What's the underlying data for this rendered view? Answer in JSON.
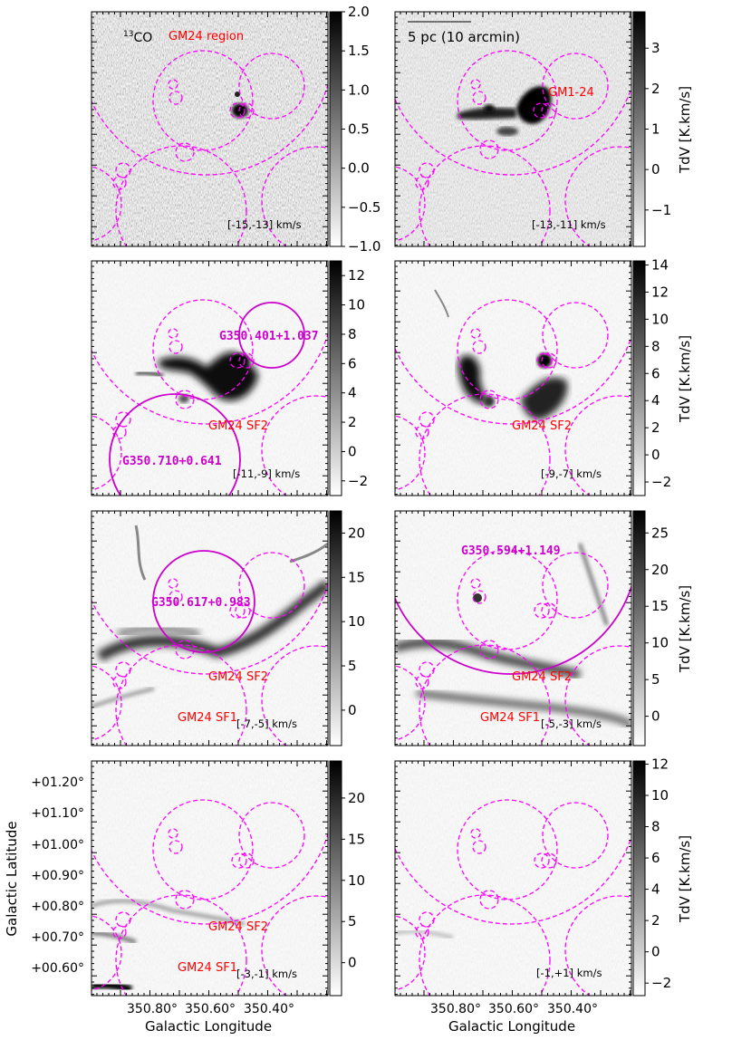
{
  "figure": {
    "x_axis_label": "Galactic Longitude",
    "y_axis_label": "Galactic Latitude",
    "x_tick_labels": [
      "350.80°",
      "350.60°",
      "350.40°"
    ],
    "y_tick_labels": [
      "+01.20°",
      "+01.10°",
      "+01.00°",
      "+00.90°",
      "+00.80°",
      "+00.70°",
      "+00.60°"
    ],
    "colorbar_label": "TdV [K.km/s]",
    "colors": {
      "circle": "#ff00ff",
      "highlight": "#cc00cc",
      "label_red": "#ff0000"
    }
  },
  "chart_data": [
    {
      "type": "heatmap",
      "panel": "row1-left",
      "velocity_range": "[-15,-13] km/s",
      "molecule": "13CO",
      "molecule_sup": "13",
      "molecule_base": "CO",
      "region_label": "GM24 region",
      "colorbar_ticks": [
        "2.0",
        "1.5",
        "1.0",
        "0.5",
        "0.0",
        "−0.5",
        "−1.0"
      ],
      "colorbar_range": [
        -1.0,
        2.0
      ]
    },
    {
      "type": "heatmap",
      "panel": "row1-right",
      "velocity_range": "[-13,-11] km/s",
      "scale_label": "5 pc (10 arcmin)",
      "clump_label": "GM1-24",
      "colorbar_ticks": [
        "3",
        "2",
        "1",
        "0",
        "−1"
      ],
      "colorbar_range": [
        -1.9,
        3.9
      ]
    },
    {
      "type": "heatmap",
      "panel": "row2-left",
      "velocity_range": "[-11,-9] km/s",
      "sources": [
        "G350.401+1.037",
        "G350.710+0.641"
      ],
      "sf_labels": [
        "GM24 SF2"
      ],
      "colorbar_ticks": [
        "12",
        "10",
        "8",
        "6",
        "4",
        "2",
        "0",
        "−2"
      ],
      "colorbar_range": [
        -3.0,
        13.0
      ]
    },
    {
      "type": "heatmap",
      "panel": "row2-right",
      "velocity_range": "[-9,-7] km/s",
      "sf_labels": [
        "GM24 SF2"
      ],
      "colorbar_ticks": [
        "14",
        "12",
        "10",
        "8",
        "6",
        "4",
        "2",
        "0",
        "−2"
      ],
      "colorbar_range": [
        -3.0,
        14.3
      ]
    },
    {
      "type": "heatmap",
      "panel": "row3-left",
      "velocity_range": "[-7,-5] km/s",
      "sources": [
        "G350.617+0.983"
      ],
      "sf_labels": [
        "GM24 SF2",
        "GM24 SF1"
      ],
      "colorbar_ticks": [
        "20",
        "15",
        "10",
        "5",
        "0"
      ],
      "colorbar_range": [
        -4.0,
        22.5
      ]
    },
    {
      "type": "heatmap",
      "panel": "row3-right",
      "velocity_range": "[-5,-3] km/s",
      "sources": [
        "G350.594+1.149"
      ],
      "sf_labels": [
        "GM24 SF2",
        "GM24 SF1"
      ],
      "colorbar_ticks": [
        "25",
        "20",
        "15",
        "10",
        "5",
        "0"
      ],
      "colorbar_range": [
        -4.0,
        28.0
      ]
    },
    {
      "type": "heatmap",
      "panel": "row4-left",
      "velocity_range": "[-3,-1] km/s",
      "sf_labels": [
        "GM24 SF2",
        "GM24 SF1"
      ],
      "colorbar_ticks": [
        "20",
        "15",
        "10",
        "5",
        "0"
      ],
      "colorbar_range": [
        -4.0,
        24.5
      ]
    },
    {
      "type": "heatmap",
      "panel": "row4-right",
      "velocity_range": "[-1,+1] km/s",
      "colorbar_ticks": [
        "12",
        "10",
        "8",
        "6",
        "4",
        "2",
        "0",
        "−2"
      ],
      "colorbar_range": [
        -2.8,
        12.2
      ]
    }
  ]
}
